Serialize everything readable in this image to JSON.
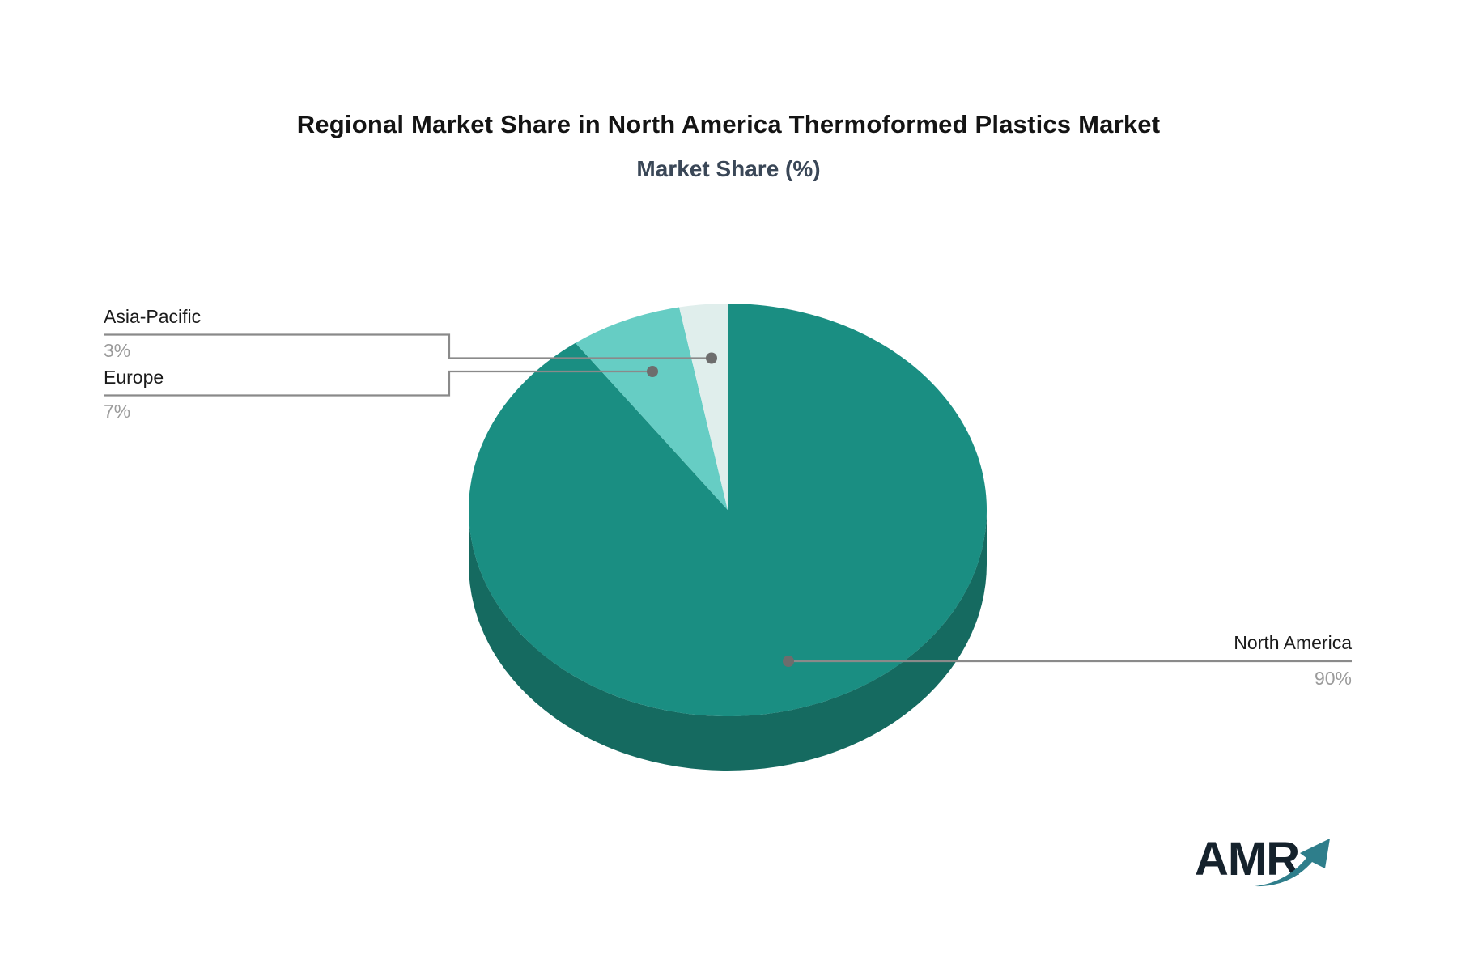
{
  "title": "Regional Market Share in North America Thermoformed Plastics Market",
  "subtitle": "Market Share (%)",
  "chart_data": {
    "type": "pie",
    "title": "Regional Market Share in North America Thermoformed Plastics Market",
    "subtitle": "Market Share (%)",
    "unit": "%",
    "direction": "clockwise",
    "start_angle": "12-oclock",
    "effect_3d": true,
    "legend": "none",
    "slices": [
      {
        "label": "North America",
        "value": 90,
        "display": "90%",
        "color": "#1a8e82"
      },
      {
        "label": "Europe",
        "value": 7,
        "display": "7%",
        "color": "#66cdc4"
      },
      {
        "label": "Asia-Pacific",
        "value": 3,
        "display": "3%",
        "color": "#e0eeec"
      }
    ],
    "side_color": "#156a60",
    "callout_line_color": "#8a8a8a"
  },
  "logo": {
    "text": "AMR",
    "color": "#15222c",
    "arrow_color": "#2e7e8b"
  }
}
